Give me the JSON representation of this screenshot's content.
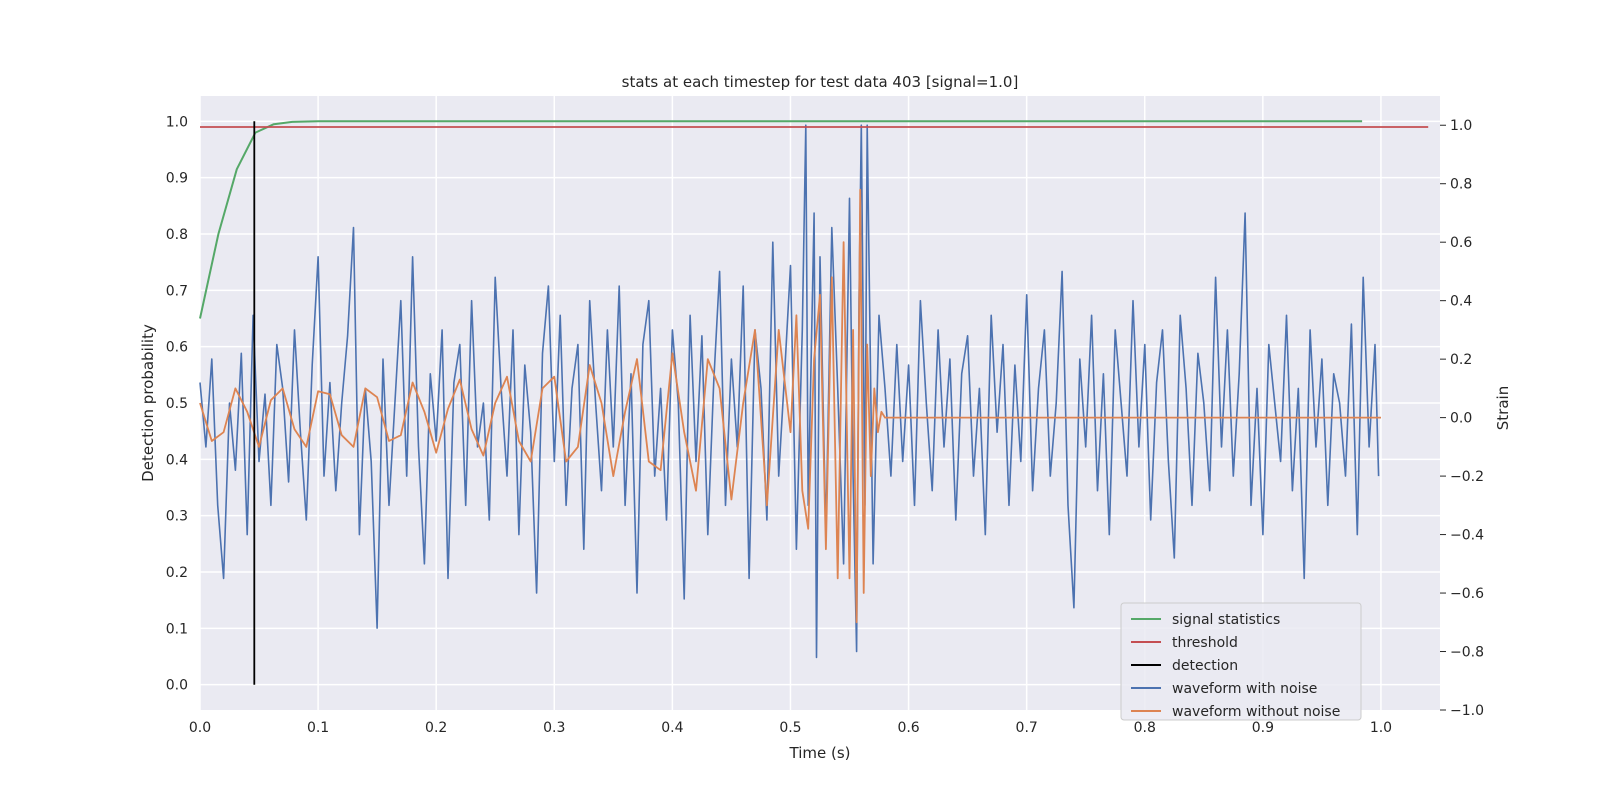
{
  "chart_data": {
    "type": "line",
    "title": "stats at each timestep for test data 403 [signal=1.0]",
    "xlabel": "Time (s)",
    "ylabel_left": "Detection probability",
    "ylabel_right": "Strain",
    "xlim": [
      0.0,
      1.05
    ],
    "ylim_left": [
      -0.045,
      1.045
    ],
    "ylim_right": [
      -1.0,
      1.1
    ],
    "x_ticks": [
      "0.0",
      "0.1",
      "0.2",
      "0.3",
      "0.4",
      "0.5",
      "0.6",
      "0.7",
      "0.8",
      "0.9",
      "1.0"
    ],
    "y_ticks_left": [
      "0.0",
      "0.1",
      "0.2",
      "0.3",
      "0.4",
      "0.5",
      "0.6",
      "0.7",
      "0.8",
      "0.9",
      "1.0"
    ],
    "y_ticks_right": [
      "−1.0",
      "−0.8",
      "−0.6",
      "−0.4",
      "−0.2",
      "0.0",
      "0.2",
      "0.4",
      "0.6",
      "0.8",
      "1.0"
    ],
    "grid": true,
    "legend_position": "bottom-right",
    "colors": {
      "background": "#eaeaf2",
      "grid": "#ffffff",
      "signal_statistics": "#55a868",
      "threshold": "#c44e52",
      "detection": "#000000",
      "waveform_with_noise": "#4c72b0",
      "waveform_without_noise": "#dd8452"
    },
    "series": [
      {
        "name": "signal statistics",
        "axis": "left",
        "x": [
          0.0,
          0.0156,
          0.0312,
          0.0469,
          0.0625,
          0.0781,
          0.1,
          0.2,
          0.3,
          0.5,
          0.7,
          0.9,
          0.984
        ],
        "y": [
          0.65,
          0.8,
          0.915,
          0.98,
          0.995,
          0.999,
          1.0,
          1.0,
          1.0,
          1.0,
          1.0,
          1.0,
          1.0
        ]
      },
      {
        "name": "threshold",
        "axis": "left",
        "x": [
          0.0,
          1.04
        ],
        "y": [
          0.99,
          0.99
        ]
      },
      {
        "name": "detection",
        "axis": "left",
        "x": [
          0.046,
          0.046
        ],
        "y": [
          0.0,
          1.0
        ]
      },
      {
        "name": "waveform with noise",
        "axis": "right",
        "x": [
          0.0,
          0.005,
          0.01,
          0.015,
          0.02,
          0.025,
          0.03,
          0.035,
          0.04,
          0.045,
          0.05,
          0.055,
          0.06,
          0.065,
          0.07,
          0.075,
          0.08,
          0.085,
          0.09,
          0.095,
          0.1,
          0.105,
          0.11,
          0.115,
          0.12,
          0.125,
          0.13,
          0.135,
          0.14,
          0.145,
          0.15,
          0.155,
          0.16,
          0.165,
          0.17,
          0.175,
          0.18,
          0.185,
          0.19,
          0.195,
          0.2,
          0.205,
          0.21,
          0.215,
          0.22,
          0.225,
          0.23,
          0.235,
          0.24,
          0.245,
          0.25,
          0.255,
          0.26,
          0.265,
          0.27,
          0.275,
          0.28,
          0.285,
          0.29,
          0.295,
          0.3,
          0.305,
          0.31,
          0.315,
          0.32,
          0.325,
          0.33,
          0.335,
          0.34,
          0.345,
          0.35,
          0.355,
          0.36,
          0.365,
          0.37,
          0.375,
          0.38,
          0.385,
          0.39,
          0.395,
          0.4,
          0.405,
          0.41,
          0.415,
          0.42,
          0.425,
          0.43,
          0.435,
          0.44,
          0.445,
          0.45,
          0.455,
          0.46,
          0.465,
          0.47,
          0.475,
          0.48,
          0.485,
          0.49,
          0.495,
          0.5,
          0.505,
          0.51,
          0.513,
          0.515,
          0.52,
          0.522,
          0.525,
          0.53,
          0.535,
          0.54,
          0.545,
          0.55,
          0.553,
          0.556,
          0.558,
          0.56,
          0.563,
          0.565,
          0.57,
          0.575,
          0.58,
          0.585,
          0.59,
          0.595,
          0.6,
          0.605,
          0.61,
          0.615,
          0.62,
          0.625,
          0.63,
          0.635,
          0.64,
          0.645,
          0.65,
          0.655,
          0.66,
          0.665,
          0.67,
          0.675,
          0.68,
          0.685,
          0.69,
          0.695,
          0.7,
          0.705,
          0.71,
          0.715,
          0.72,
          0.725,
          0.73,
          0.735,
          0.74,
          0.745,
          0.75,
          0.755,
          0.76,
          0.765,
          0.77,
          0.775,
          0.78,
          0.785,
          0.79,
          0.795,
          0.8,
          0.805,
          0.81,
          0.815,
          0.82,
          0.825,
          0.83,
          0.835,
          0.84,
          0.845,
          0.85,
          0.855,
          0.86,
          0.865,
          0.87,
          0.875,
          0.88,
          0.885,
          0.89,
          0.895,
          0.9,
          0.905,
          0.91,
          0.915,
          0.92,
          0.925,
          0.93,
          0.935,
          0.94,
          0.945,
          0.95,
          0.955,
          0.96,
          0.965,
          0.97,
          0.975,
          0.98,
          0.985,
          0.99,
          0.995,
          0.998
        ],
        "y": [
          0.12,
          -0.1,
          0.2,
          -0.3,
          -0.55,
          0.05,
          -0.18,
          0.22,
          -0.4,
          0.35,
          -0.15,
          0.08,
          -0.3,
          0.25,
          0.1,
          -0.22,
          0.3,
          -0.05,
          -0.35,
          0.18,
          0.55,
          -0.2,
          0.12,
          -0.25,
          0.05,
          0.28,
          0.65,
          -0.4,
          0.1,
          -0.15,
          -0.72,
          0.2,
          -0.3,
          0.05,
          0.4,
          -0.2,
          0.55,
          -0.1,
          -0.5,
          0.15,
          -0.08,
          0.3,
          -0.55,
          0.12,
          0.25,
          -0.3,
          0.4,
          -0.1,
          0.05,
          -0.35,
          0.48,
          0.1,
          -0.2,
          0.3,
          -0.4,
          0.18,
          -0.05,
          -0.6,
          0.22,
          0.45,
          -0.15,
          0.35,
          -0.3,
          0.1,
          0.25,
          -0.45,
          0.4,
          0.05,
          -0.25,
          0.3,
          -0.1,
          0.45,
          -0.3,
          0.15,
          -0.6,
          0.25,
          0.4,
          -0.2,
          0.1,
          -0.35,
          0.3,
          0.05,
          -0.62,
          0.35,
          -0.15,
          0.28,
          -0.4,
          0.12,
          0.5,
          -0.3,
          0.2,
          -0.1,
          0.45,
          -0.55,
          0.3,
          0.1,
          -0.35,
          0.6,
          -0.2,
          0.15,
          0.52,
          -0.45,
          0.3,
          1.0,
          -0.3,
          0.7,
          -0.82,
          0.55,
          -0.4,
          0.65,
          0.1,
          -0.5,
          0.75,
          -0.2,
          -0.8,
          0.4,
          1.0,
          -0.3,
          1.0,
          -0.5,
          0.35,
          0.1,
          -0.2,
          0.25,
          -0.15,
          0.18,
          -0.3,
          0.4,
          0.05,
          -0.25,
          0.3,
          -0.1,
          0.2,
          -0.35,
          0.15,
          0.28,
          -0.2,
          0.1,
          -0.4,
          0.35,
          -0.05,
          0.25,
          -0.3,
          0.18,
          -0.15,
          0.42,
          -0.25,
          0.1,
          0.3,
          -0.2,
          0.05,
          0.5,
          -0.3,
          -0.65,
          0.2,
          -0.1,
          0.35,
          -0.25,
          0.15,
          -0.4,
          0.3,
          0.05,
          -0.2,
          0.4,
          -0.1,
          0.25,
          -0.35,
          0.12,
          0.3,
          -0.15,
          -0.48,
          0.35,
          0.1,
          -0.3,
          0.22,
          0.05,
          -0.25,
          0.48,
          -0.1,
          0.3,
          -0.2,
          0.15,
          0.7,
          -0.3,
          0.1,
          -0.4,
          0.25,
          0.05,
          -0.15,
          0.35,
          -0.25,
          0.1,
          -0.55,
          0.3,
          -0.1,
          0.2,
          -0.3,
          0.15,
          0.05,
          -0.2,
          0.32,
          -0.4,
          0.48,
          -0.1,
          0.25,
          -0.2
        ]
      },
      {
        "name": "waveform without noise",
        "axis": "right",
        "x": [
          0.0,
          0.01,
          0.02,
          0.03,
          0.04,
          0.05,
          0.06,
          0.07,
          0.08,
          0.09,
          0.1,
          0.11,
          0.12,
          0.13,
          0.14,
          0.15,
          0.16,
          0.17,
          0.18,
          0.19,
          0.2,
          0.21,
          0.22,
          0.23,
          0.24,
          0.25,
          0.26,
          0.27,
          0.28,
          0.29,
          0.3,
          0.31,
          0.32,
          0.33,
          0.34,
          0.35,
          0.36,
          0.37,
          0.38,
          0.39,
          0.4,
          0.41,
          0.42,
          0.43,
          0.44,
          0.45,
          0.46,
          0.47,
          0.48,
          0.49,
          0.5,
          0.505,
          0.51,
          0.515,
          0.52,
          0.525,
          0.53,
          0.535,
          0.54,
          0.545,
          0.55,
          0.553,
          0.556,
          0.559,
          0.562,
          0.565,
          0.568,
          0.571,
          0.574,
          0.577,
          0.58,
          0.6,
          0.7,
          0.8,
          0.9,
          1.0
        ],
        "y": [
          0.05,
          -0.08,
          -0.05,
          0.1,
          0.02,
          -0.1,
          0.06,
          0.1,
          -0.04,
          -0.1,
          0.09,
          0.08,
          -0.06,
          -0.1,
          0.1,
          0.07,
          -0.08,
          -0.06,
          0.12,
          0.02,
          -0.12,
          0.03,
          0.13,
          -0.04,
          -0.13,
          0.05,
          0.14,
          -0.08,
          -0.15,
          0.1,
          0.14,
          -0.15,
          -0.1,
          0.18,
          0.05,
          -0.2,
          0.02,
          0.2,
          -0.15,
          -0.18,
          0.22,
          -0.05,
          -0.25,
          0.2,
          0.1,
          -0.28,
          0.05,
          0.3,
          -0.3,
          0.3,
          -0.05,
          0.35,
          -0.25,
          -0.38,
          0.2,
          0.42,
          -0.45,
          0.48,
          -0.55,
          0.6,
          -0.55,
          0.3,
          -0.7,
          0.78,
          -0.6,
          0.25,
          -0.2,
          0.1,
          -0.05,
          0.02,
          0.0,
          0.0,
          0.0,
          0.0,
          0.0,
          0.0
        ]
      }
    ]
  }
}
